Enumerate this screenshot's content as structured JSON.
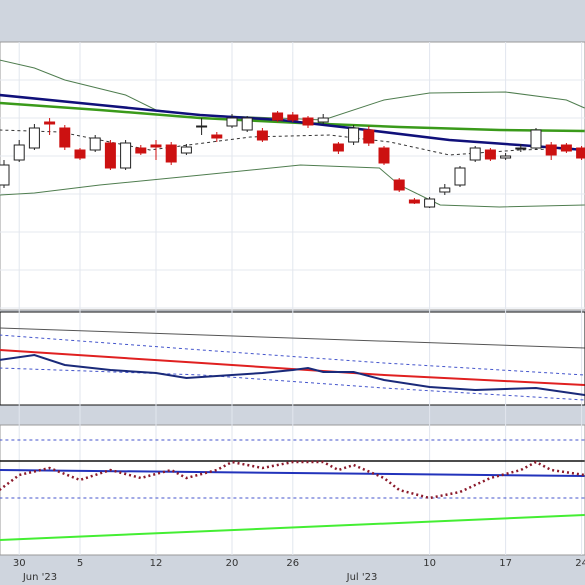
{
  "chart_data": [
    {
      "type": "candlestick",
      "categories": [
        null,
        "30",
        null,
        null,
        null,
        "5",
        null,
        null,
        null,
        null,
        "12",
        null,
        null,
        null,
        null,
        "20",
        null,
        null,
        null,
        "26",
        null,
        null,
        null,
        null,
        null,
        null,
        null,
        null,
        "10",
        null,
        null,
        null,
        null,
        "17",
        null,
        null,
        null,
        null,
        "24"
      ],
      "open": [
        125,
        150,
        162,
        188,
        182,
        160,
        160,
        167,
        142,
        162,
        165,
        165,
        157,
        183,
        175,
        184,
        180,
        179,
        197,
        195,
        192,
        188,
        166,
        168,
        180,
        162,
        130,
        110,
        103,
        118,
        125,
        150,
        160,
        152,
        162,
        162,
        165,
        165,
        162
      ],
      "high": [
        150,
        170,
        186,
        192,
        185,
        162,
        175,
        170,
        170,
        165,
        170,
        168,
        166,
        192,
        178,
        196,
        194,
        182,
        199,
        198,
        194,
        196,
        168,
        185,
        184,
        164,
        132,
        112,
        113,
        126,
        144,
        164,
        162,
        157,
        166,
        182,
        168,
        167,
        164
      ],
      "low": [
        122,
        148,
        160,
        175,
        160,
        150,
        158,
        140,
        140,
        155,
        150,
        145,
        155,
        175,
        168,
        182,
        178,
        168,
        188,
        188,
        182,
        186,
        156,
        165,
        164,
        145,
        118,
        106,
        102,
        115,
        123,
        148,
        149,
        150,
        158,
        160,
        150,
        157,
        150
      ],
      "close": [
        145,
        165,
        182,
        186,
        163,
        152,
        172,
        142,
        167,
        157,
        163,
        148,
        163,
        184,
        172,
        192,
        192,
        170,
        190,
        190,
        185,
        192,
        159,
        182,
        167,
        147,
        120,
        107,
        111,
        122,
        142,
        162,
        151,
        154,
        162,
        180,
        155,
        159,
        152
      ],
      "ylim": [
        0,
        268
      ],
      "overlays": [
        {
          "color": "#4f7d4f",
          "width": 1,
          "x": [
            -0.3,
            2,
            4,
            8,
            10,
            13,
            18,
            21,
            25,
            28,
            33,
            37,
            38.2
          ],
          "values": [
            250,
            242,
            230,
            215,
            200,
            195,
            192,
            190,
            210,
            217,
            218,
            210,
            202
          ]
        },
        {
          "color": "#4f7d4f",
          "width": 1,
          "x": [
            -0.3,
            2,
            6.3,
            13,
            19.5,
            24.7,
            26,
            28.7,
            32.6,
            38.2
          ],
          "values": [
            115,
            117,
            125,
            135,
            145,
            142,
            125,
            105,
            103,
            105
          ]
        },
        {
          "color": "#333333",
          "width": 1,
          "dash": "3 3",
          "x": [
            -0.3,
            3.7,
            9.6,
            16.2,
            21.4,
            25.4,
            29.3,
            33.9,
            38.2
          ],
          "values": [
            180,
            178,
            160,
            173,
            175,
            168,
            155,
            160,
            162
          ]
        },
        {
          "color": "#3a9a1a",
          "width": 2.5,
          "x": [
            -0.3,
            6.3,
            12.9,
            19.5,
            26,
            32.6,
            38.2
          ],
          "values": [
            207,
            200,
            192,
            187,
            183,
            180,
            179
          ]
        },
        {
          "color": "#10107a",
          "width": 2.5,
          "x": [
            -0.3,
            6.3,
            12.9,
            18.2,
            22.8,
            29.3,
            33.9,
            38.2
          ],
          "values": [
            215,
            205,
            195,
            190,
            182,
            170,
            165,
            160
          ]
        }
      ]
    },
    {
      "type": "line",
      "ylim": [
        0,
        93
      ],
      "series": [
        {
          "color": "#555555",
          "width": 1,
          "x": [
            -0.3,
            38.2
          ],
          "values": [
            77,
            57
          ]
        },
        {
          "color": "#4455cc",
          "width": 1,
          "dash": "3 3",
          "x": [
            -0.3,
            13,
            25,
            38.2
          ],
          "values": [
            70,
            55,
            42,
            30
          ]
        },
        {
          "color": "#4455cc",
          "width": 1,
          "dash": "3 3",
          "x": [
            -0.3,
            13,
            25,
            38.2
          ],
          "values": [
            37,
            30,
            17,
            5
          ]
        },
        {
          "color": "#e02020",
          "width": 2,
          "x": [
            -0.3,
            13,
            25,
            38.2
          ],
          "values": [
            55,
            42,
            30,
            20
          ]
        },
        {
          "color": "#1a2a7a",
          "width": 2,
          "x": [
            -0.3,
            2,
            4,
            7,
            10,
            12,
            15,
            17,
            19,
            20,
            21,
            23,
            25,
            28,
            31,
            35,
            38.2
          ],
          "values": [
            45,
            50,
            40,
            35,
            32,
            27,
            30,
            32,
            35,
            37,
            33,
            33,
            25,
            18,
            15,
            17,
            10
          ]
        }
      ]
    },
    {
      "type": "line",
      "ylim": [
        0,
        130
      ],
      "series": [
        {
          "color": "#4455cc",
          "width": 1,
          "dash": "3 3",
          "x": [
            -0.3,
            38.2
          ],
          "values": [
            115,
            115
          ]
        },
        {
          "color": "#4455cc",
          "width": 1,
          "dash": "3 3",
          "x": [
            -0.3,
            38.2
          ],
          "values": [
            57,
            57
          ]
        },
        {
          "color": "#111111",
          "width": 1.5,
          "x": [
            -0.3,
            38.2
          ],
          "values": [
            94,
            94
          ]
        },
        {
          "color": "#44ee33",
          "width": 2,
          "x": [
            -0.3,
            38.2
          ],
          "values": [
            15,
            40
          ]
        },
        {
          "color": "#2233bb",
          "width": 2,
          "x": [
            -0.3,
            38.2
          ],
          "values": [
            85,
            79
          ]
        },
        {
          "color": "#8b1a2b",
          "width": 2.5,
          "dash": "2 3",
          "x": [
            -0.3,
            1,
            3,
            5,
            7,
            9,
            11,
            12,
            14,
            15,
            17,
            19,
            21,
            22,
            23,
            25,
            26,
            28,
            30,
            32,
            34,
            35,
            36,
            38.2
          ],
          "values": [
            65,
            80,
            87,
            75,
            85,
            77,
            85,
            77,
            85,
            93,
            87,
            93,
            93,
            85,
            90,
            77,
            65,
            57,
            63,
            77,
            85,
            93,
            85,
            80
          ]
        }
      ]
    }
  ],
  "x_axis": {
    "month_labels": [
      "Jun '23",
      "Jul '23"
    ]
  }
}
